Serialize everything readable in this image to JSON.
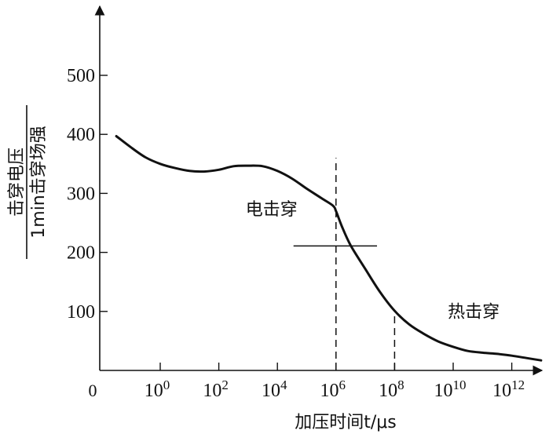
{
  "chart_data": {
    "type": "line",
    "x_scale": "log10",
    "xlabel": "加压时间t/μs",
    "ylabel_numerator": "击穿电压",
    "ylabel_denominator": "1min击穿场强",
    "origin_label": "0",
    "y_ticks": [
      100,
      200,
      300,
      400,
      500
    ],
    "x_tick_base": "10",
    "x_tick_exponents": [
      "0",
      "2",
      "4",
      "6",
      "8",
      "10",
      "12"
    ],
    "xlim_log10": [
      -2,
      13
    ],
    "ylim": [
      0,
      560
    ],
    "series": [
      {
        "log10_t": [
          -1.5,
          -1.0,
          -0.5,
          0,
          0.5,
          1,
          1.5,
          2,
          2.5,
          3,
          3.5,
          4,
          4.5,
          5,
          5.5,
          5.9,
          6.0,
          6.2,
          6.5,
          7.0,
          7.5,
          8.0,
          8.5,
          9.0,
          9.5,
          10.0,
          10.5,
          11.0,
          11.5,
          12.0,
          12.5,
          13.0
        ],
        "values": [
          397,
          378,
          361,
          350,
          343,
          338,
          337,
          340,
          346,
          347,
          346,
          338,
          325,
          308,
          292,
          279,
          270,
          244,
          212,
          172,
          133,
          101,
          78,
          62,
          49,
          40,
          33,
          30,
          28,
          25,
          21,
          17
        ]
      }
    ],
    "reference_lines": [
      {
        "orientation": "vertical",
        "log10_t": 6,
        "y_from": 0,
        "y_to": 360,
        "style": "dashed"
      },
      {
        "orientation": "vertical",
        "log10_t": 8,
        "y_from": 0,
        "y_to": 101,
        "style": "dashed"
      },
      {
        "orientation": "horizontal",
        "y": 211,
        "log10_t_from": 4.55,
        "log10_t_to": 7.4,
        "style": "solid"
      }
    ],
    "annotations": [
      {
        "text": "电击穿",
        "log10_t": 3.8,
        "y": 263
      },
      {
        "text": "热击穿",
        "log10_t": 10.7,
        "y": 90
      }
    ]
  }
}
